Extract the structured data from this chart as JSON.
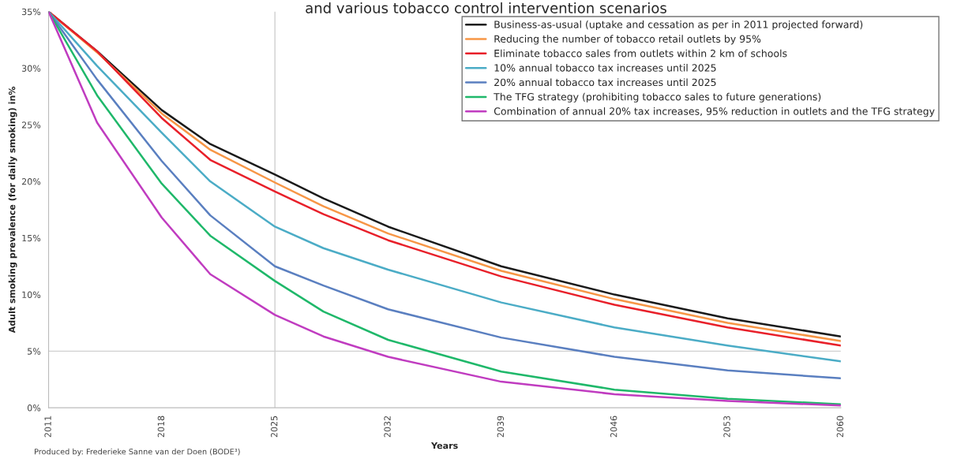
{
  "chart_data": {
    "type": "line",
    "title": "and various tobacco control intervention scenarios",
    "xlabel": "Years",
    "ylabel": "Adult smoking prevalence (for daily smoking) in%",
    "x": [
      2011,
      2014,
      2018,
      2021,
      2025,
      2028,
      2032,
      2039,
      2046,
      2053,
      2060
    ],
    "series": [
      {
        "name": "Business-as-usual (uptake and cessation as per in 2011 projected forward)",
        "color": "#1a1a1a",
        "values": [
          35,
          31.5,
          26.3,
          23.3,
          20.6,
          18.5,
          16.0,
          12.5,
          10.0,
          7.9,
          6.3
        ]
      },
      {
        "name": "Reducing the number of tobacco retail outlets by 95%",
        "color": "#f79646",
        "values": [
          35,
          31.4,
          26.0,
          22.8,
          19.9,
          17.8,
          15.4,
          12.1,
          9.6,
          7.5,
          5.9
        ]
      },
      {
        "name": "Eliminate tobacco sales from outlets within 2 km of schools",
        "color": "#e8202a",
        "values": [
          35,
          31.5,
          25.6,
          21.9,
          19.1,
          17.1,
          14.8,
          11.6,
          9.1,
          7.1,
          5.5
        ]
      },
      {
        "name": "10% annual tobacco tax increases until 2025",
        "color": "#4bacc6",
        "values": [
          35,
          30.2,
          24.3,
          20.0,
          16.0,
          14.1,
          12.2,
          9.3,
          7.1,
          5.5,
          4.1
        ]
      },
      {
        "name": "20% annual tobacco tax increases until 2025",
        "color": "#5a7fc0",
        "values": [
          35,
          29.0,
          21.8,
          17.0,
          12.5,
          10.8,
          8.7,
          6.2,
          4.5,
          3.3,
          2.6
        ]
      },
      {
        "name": "The TFG strategy (prohibiting tobacco sales to future generations)",
        "color": "#1fb86a",
        "values": [
          35,
          27.6,
          19.8,
          15.2,
          11.2,
          8.5,
          6.0,
          3.2,
          1.6,
          0.8,
          0.3
        ]
      },
      {
        "name": "Combination of annual 20% tax increases, 95% reduction in outlets and the TFG strategy",
        "color": "#c03cc0",
        "values": [
          35,
          25.2,
          16.8,
          11.8,
          8.2,
          6.3,
          4.5,
          2.3,
          1.2,
          0.6,
          0.2
        ]
      }
    ],
    "xlim": [
      2011,
      2060
    ],
    "xticks": [
      2011,
      2018,
      2025,
      2032,
      2039,
      2046,
      2053,
      2060
    ],
    "ylim": [
      0,
      35
    ],
    "yticks": [
      {
        "value": 0,
        "label": "0%"
      },
      {
        "value": 5,
        "label": "5%"
      },
      {
        "value": 10,
        "label": "10%"
      },
      {
        "value": 15,
        "label": "15%"
      },
      {
        "value": 20,
        "label": "20%"
      },
      {
        "value": 25,
        "label": "25%"
      },
      {
        "value": 30,
        "label": "30%"
      },
      {
        "value": 35,
        "label": "35%"
      }
    ],
    "ref_lines": [
      {
        "axis": "x",
        "value": 2025,
        "color": "#d0d0d0"
      },
      {
        "axis": "y",
        "value": 5,
        "color": "#d0d0d0"
      }
    ],
    "grid": false,
    "legend": "top right",
    "marker": "none",
    "line_style": "solid",
    "annotations": [
      "Produced by: Frederieke Sanne van der Doen (BODE³)"
    ]
  }
}
